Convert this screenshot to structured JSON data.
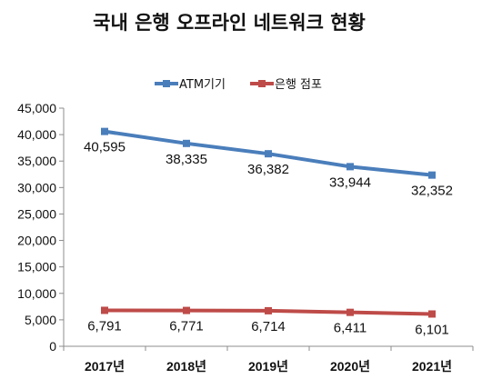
{
  "chart_data": {
    "type": "line",
    "title": "국내 은행 오프라인 네트워크 현황",
    "categories": [
      "2017년",
      "2018년",
      "2019년",
      "2020년",
      "2021년"
    ],
    "series": [
      {
        "name": "ATM기기",
        "color": "#4a7ebb",
        "values": [
          40595,
          38335,
          36382,
          33944,
          32352
        ],
        "labels": [
          "40,595",
          "38,335",
          "36,382",
          "33,944",
          "32,352"
        ]
      },
      {
        "name": "은행 점포",
        "color": "#be4b48",
        "values": [
          6791,
          6771,
          6714,
          6411,
          6101
        ],
        "labels": [
          "6,791",
          "6,771",
          "6,714",
          "6,411",
          "6,101"
        ]
      }
    ],
    "ylim": [
      0,
      45000
    ],
    "y_ticks": [
      "0",
      "5,000",
      "10,000",
      "15,000",
      "20,000",
      "25,000",
      "30,000",
      "35,000",
      "40,000",
      "45,000"
    ],
    "legend_position": "top-center",
    "grid": false
  }
}
